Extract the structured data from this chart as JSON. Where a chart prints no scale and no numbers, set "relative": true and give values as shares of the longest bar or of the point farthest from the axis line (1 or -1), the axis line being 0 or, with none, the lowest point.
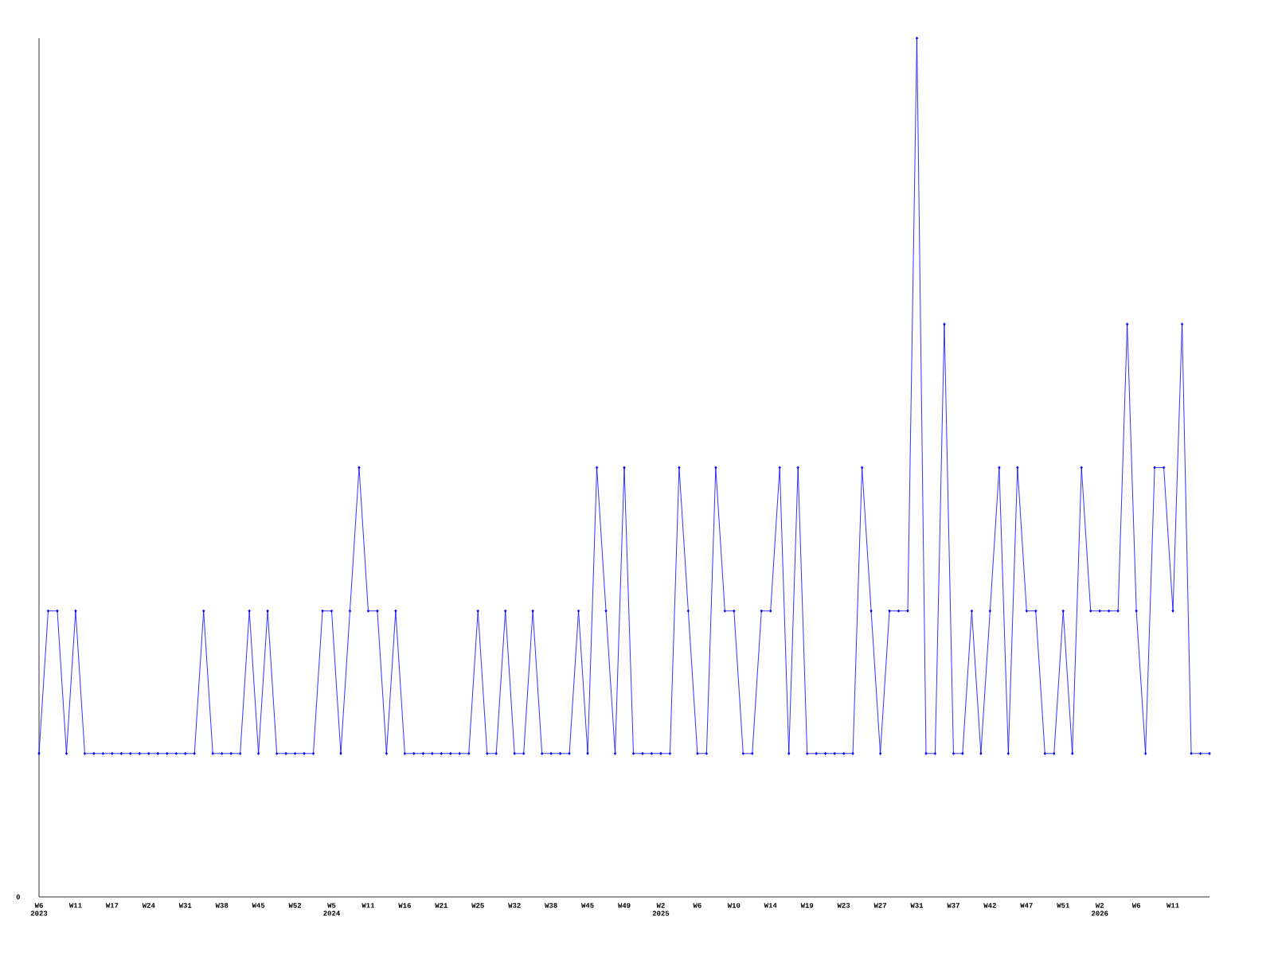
{
  "chart_data": {
    "type": "line",
    "relative": true,
    "marker": "diamond",
    "line_style": "solid",
    "annotations": [
      "0"
    ],
    "categories": [
      "W6 2023",
      null,
      null,
      null,
      "W11",
      null,
      null,
      null,
      "W17",
      null,
      null,
      null,
      "W24",
      null,
      null,
      null,
      "W31",
      null,
      null,
      null,
      "W38",
      null,
      null,
      null,
      "W45",
      null,
      null,
      null,
      "W52",
      null,
      null,
      null,
      "W5 2024",
      null,
      null,
      null,
      "W11",
      null,
      null,
      null,
      "W16",
      null,
      null,
      null,
      "W21",
      null,
      null,
      null,
      "W25",
      null,
      null,
      null,
      "W32",
      null,
      null,
      null,
      "W38",
      null,
      null,
      null,
      "W45",
      null,
      null,
      null,
      "W49",
      null,
      null,
      null,
      "W2 2025",
      null,
      null,
      null,
      "W6",
      null,
      null,
      null,
      "W10",
      null,
      null,
      null,
      "W14",
      null,
      null,
      null,
      "W19",
      null,
      null,
      null,
      "W23",
      null,
      null,
      null,
      "W27",
      null,
      null,
      null,
      "W31",
      null,
      null,
      null,
      "W37",
      null,
      null,
      null,
      "W42",
      null,
      null,
      null,
      "W47",
      null,
      null,
      null,
      "W51",
      null,
      null,
      null,
      "W2 2026",
      null,
      null,
      null,
      "W6",
      null,
      null,
      null,
      "W11",
      null,
      null,
      null,
      null
    ],
    "series": [
      {
        "color": "#0000ff",
        "values": [
          0.167,
          0.333,
          0.333,
          0.167,
          0.333,
          0.167,
          0.167,
          0.167,
          0.167,
          0.167,
          0.167,
          0.167,
          0.167,
          0.167,
          0.167,
          0.167,
          0.167,
          0.167,
          0.333,
          0.167,
          0.167,
          0.167,
          0.167,
          0.333,
          0.167,
          0.333,
          0.167,
          0.167,
          0.167,
          0.167,
          0.167,
          0.333,
          0.333,
          0.167,
          0.333,
          0.5,
          0.333,
          0.333,
          0.167,
          0.333,
          0.167,
          0.167,
          0.167,
          0.167,
          0.167,
          0.167,
          0.167,
          0.167,
          0.333,
          0.167,
          0.167,
          0.333,
          0.167,
          0.167,
          0.333,
          0.167,
          0.167,
          0.167,
          0.167,
          0.333,
          0.167,
          0.5,
          0.333,
          0.167,
          0.5,
          0.167,
          0.167,
          0.167,
          0.167,
          0.167,
          0.5,
          0.333,
          0.167,
          0.167,
          0.5,
          0.333,
          0.333,
          0.167,
          0.167,
          0.333,
          0.333,
          0.5,
          0.167,
          0.5,
          0.167,
          0.167,
          0.167,
          0.167,
          0.167,
          0.167,
          0.5,
          0.333,
          0.167,
          0.333,
          0.333,
          0.333,
          1,
          0.167,
          0.167,
          0.667,
          0.167,
          0.167,
          0.333,
          0.167,
          0.333,
          0.5,
          0.167,
          0.5,
          0.333,
          0.333,
          0.167,
          0.167,
          0.333,
          0.167,
          0.5,
          0.333,
          0.333,
          0.333,
          0.333,
          0.667,
          0.333,
          0.167,
          0.5,
          0.5,
          0.333,
          0.667,
          0.167,
          0.167,
          0.167
        ]
      }
    ]
  }
}
